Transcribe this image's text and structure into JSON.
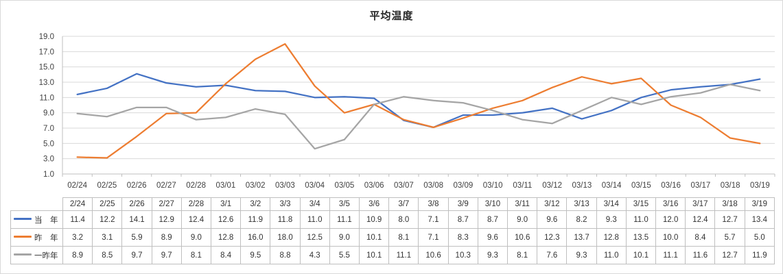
{
  "title": "平均温度",
  "chart_data": {
    "type": "line",
    "title": "平均温度",
    "x_labels": [
      "02/24",
      "02/25",
      "02/26",
      "02/27",
      "02/28",
      "03/01",
      "03/02",
      "03/03",
      "03/04",
      "03/05",
      "03/06",
      "03/07",
      "03/08",
      "03/09",
      "03/10",
      "03/11",
      "03/12",
      "03/13",
      "03/14",
      "03/15",
      "03/16",
      "03/17",
      "03/18",
      "03/19"
    ],
    "ylim": [
      1.0,
      19.0
    ],
    "y_step": 2.0,
    "grid": "horizontal",
    "legend_position": "table-left",
    "colors": {
      "grid_line": "#d9d9d9",
      "axis_line": "#bfbfbf",
      "axis_text": "#404040"
    },
    "series": [
      {
        "name": "当　年",
        "color": "#4472c4",
        "values": [
          11.4,
          12.2,
          14.1,
          12.9,
          12.4,
          12.6,
          11.9,
          11.8,
          11.0,
          11.1,
          10.9,
          8.0,
          7.1,
          8.7,
          8.7,
          9.0,
          9.6,
          8.2,
          9.3,
          11.0,
          12.0,
          12.4,
          12.7,
          13.4
        ]
      },
      {
        "name": "昨　年",
        "color": "#ed7d31",
        "values": [
          3.2,
          3.1,
          5.9,
          8.9,
          9.0,
          12.8,
          16.0,
          18.0,
          12.5,
          9.0,
          10.1,
          8.1,
          7.1,
          8.3,
          9.6,
          10.6,
          12.3,
          13.7,
          12.8,
          13.5,
          10.0,
          8.4,
          5.7,
          5.0
        ]
      },
      {
        "name": "一昨年",
        "color": "#a5a5a5",
        "values": [
          8.9,
          8.5,
          9.7,
          9.7,
          8.1,
          8.4,
          9.5,
          8.8,
          4.3,
          5.5,
          10.1,
          11.1,
          10.6,
          10.3,
          9.3,
          8.1,
          7.6,
          9.3,
          11.0,
          10.1,
          11.1,
          11.6,
          12.7,
          11.9
        ]
      }
    ]
  },
  "table": {
    "columns": [
      "2/24",
      "2/25",
      "2/26",
      "2/27",
      "2/28",
      "3/1",
      "3/2",
      "3/3",
      "3/4",
      "3/5",
      "3/6",
      "3/7",
      "3/8",
      "3/9",
      "3/10",
      "3/11",
      "3/12",
      "3/13",
      "3/14",
      "3/15",
      "3/16",
      "3/17",
      "3/18",
      "3/19"
    ]
  }
}
